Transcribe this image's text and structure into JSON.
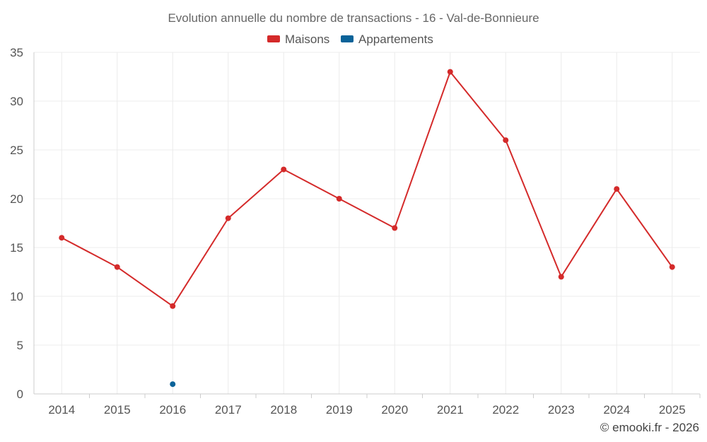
{
  "chart_data": {
    "type": "line",
    "title": "Evolution annuelle du nombre de transactions - 16 - Val-de-Bonnieure",
    "categories": [
      "2014",
      "2015",
      "2016",
      "2017",
      "2018",
      "2019",
      "2020",
      "2021",
      "2022",
      "2023",
      "2024",
      "2025"
    ],
    "y_ticks": [
      "0",
      "5",
      "10",
      "15",
      "20",
      "25",
      "30",
      "35"
    ],
    "ylim": [
      0,
      35
    ],
    "grid": true,
    "legend_position": "top-center",
    "series": [
      {
        "name": "Maisons",
        "color": "#d42a2a",
        "values": [
          16,
          13,
          9,
          18,
          23,
          20,
          17,
          33,
          26,
          12,
          21,
          13
        ]
      },
      {
        "name": "Appartements",
        "color": "#0a6399",
        "values": [
          null,
          null,
          1,
          null,
          null,
          null,
          null,
          null,
          null,
          null,
          null,
          null
        ]
      }
    ]
  },
  "credit": "© emooki.fr - 2026"
}
